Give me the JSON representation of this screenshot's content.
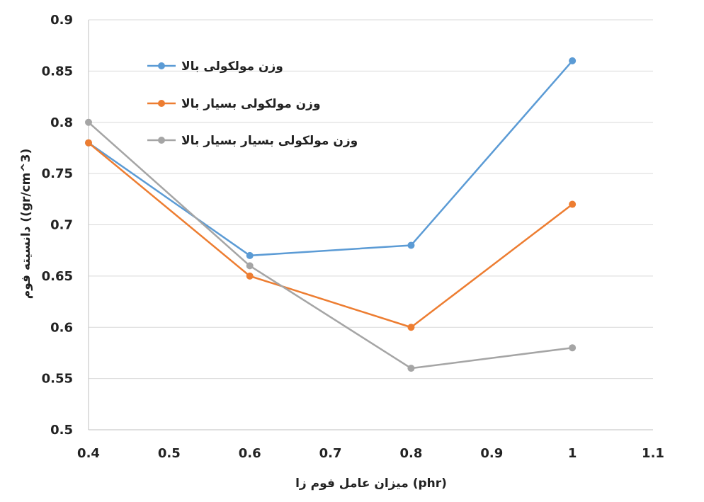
{
  "chart_data": {
    "type": "line",
    "xlabel": "میزان عامل فوم زا (phr)",
    "ylabel": "دانسیته فوم ((gr/cm^3)",
    "xlim": [
      0.4,
      1.1
    ],
    "ylim": [
      0.5,
      0.9
    ],
    "x_ticks": [
      "0.4",
      "0.5",
      "0.6",
      "0.7",
      "0.8",
      "0.9",
      "1",
      "1.1"
    ],
    "y_ticks": [
      "0.5",
      "0.55",
      "0.6",
      "0.65",
      "0.7",
      "0.75",
      "0.8",
      "0.85",
      "0.9"
    ],
    "grid": "horizontal",
    "legend_position": "top-left",
    "x": [
      0.4,
      0.6,
      0.8,
      1.0
    ],
    "series": [
      {
        "name": "وزن مولکولی بالا",
        "color": "#5b9bd5",
        "values": [
          0.78,
          0.67,
          0.68,
          0.86
        ]
      },
      {
        "name": "وزن مولکولی بسیار بالا",
        "color": "#ed7d31",
        "values": [
          0.78,
          0.65,
          0.6,
          0.72
        ]
      },
      {
        "name": "وزن مولکولی بسیار بسیار بالا",
        "color": "#a5a5a5",
        "values": [
          0.8,
          0.66,
          0.56,
          0.58
        ]
      }
    ]
  }
}
